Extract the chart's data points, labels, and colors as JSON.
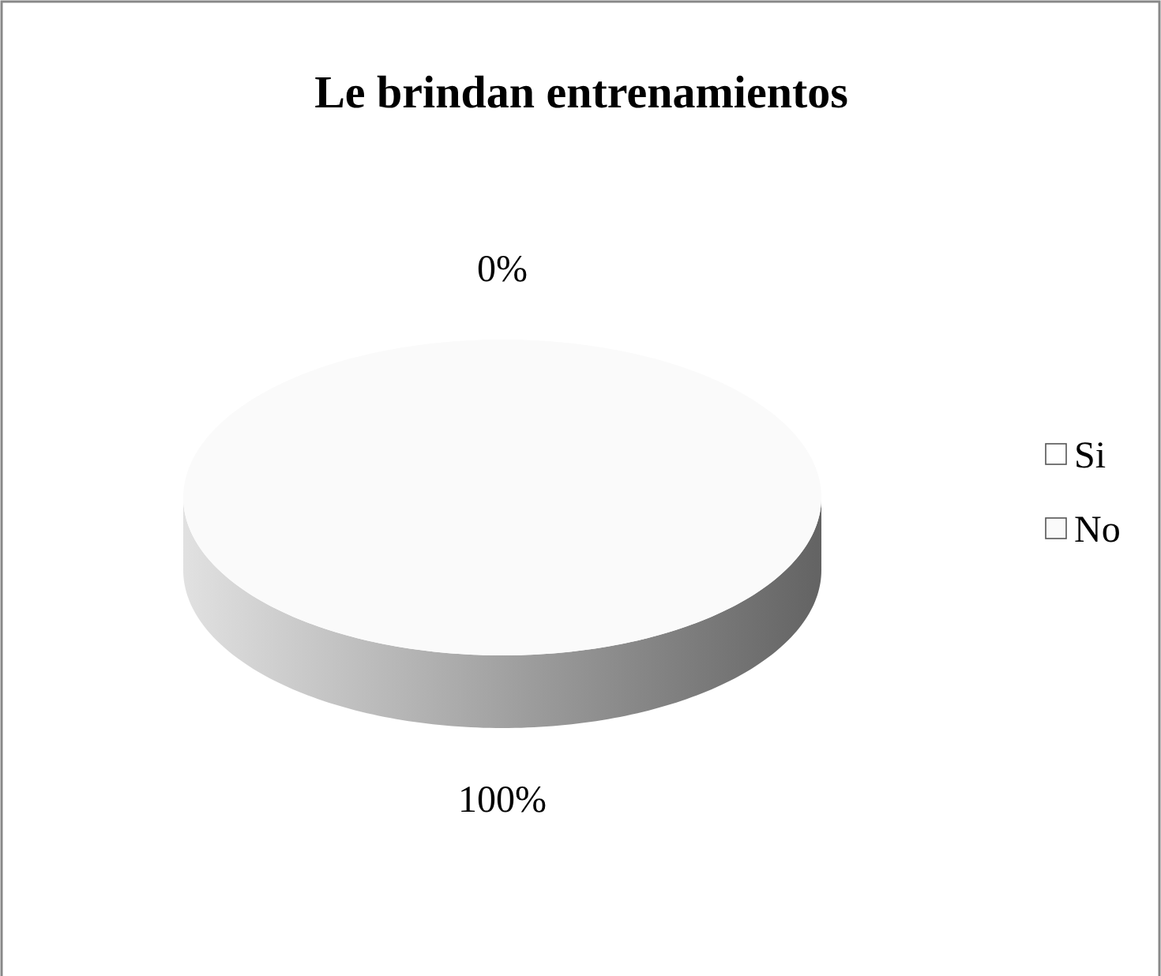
{
  "chart_data": {
    "type": "pie",
    "title": "Le brindan entrenamientos",
    "categories": [
      "Si",
      "No"
    ],
    "values": [
      0,
      100
    ],
    "value_labels": [
      "0%",
      "100%"
    ],
    "colors": [
      "#ffffff",
      "#fafafa"
    ],
    "legend": "right"
  }
}
